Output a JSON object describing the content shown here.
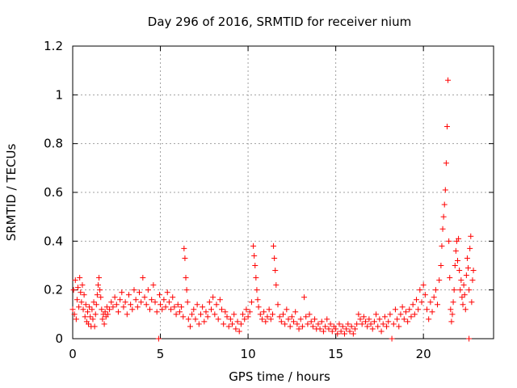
{
  "chart_data": {
    "type": "scatter",
    "title": "Day 296 of 2016, SRMTID for receiver nium",
    "xlabel": "GPS time / hours",
    "ylabel": "SRMTID / TECUs",
    "xlim": [
      0,
      24
    ],
    "ylim": [
      0,
      1.2
    ],
    "x_ticks": [
      0,
      5,
      10,
      15,
      20
    ],
    "x_tick_labels": [
      "0",
      "5",
      "10",
      "15",
      "20"
    ],
    "y_ticks": [
      0,
      0.2,
      0.4,
      0.6,
      0.8,
      1,
      1.2
    ],
    "y_tick_labels": [
      "0",
      "0.2",
      "0.4",
      "0.6",
      "0.8",
      "1",
      "1.2"
    ],
    "grid": true,
    "marker": "+",
    "color": "#ff0000",
    "series": [
      {
        "name": "SRMTID",
        "points": [
          [
            0.0,
            0.12
          ],
          [
            0.05,
            0.2
          ],
          [
            0.1,
            0.1
          ],
          [
            0.15,
            0.24
          ],
          [
            0.2,
            0.08
          ],
          [
            0.25,
            0.16
          ],
          [
            0.3,
            0.21
          ],
          [
            0.35,
            0.13
          ],
          [
            0.4,
            0.25
          ],
          [
            0.45,
            0.19
          ],
          [
            0.5,
            0.15
          ],
          [
            0.55,
            0.22
          ],
          [
            0.6,
            0.12
          ],
          [
            0.65,
            0.18
          ],
          [
            0.7,
            0.09
          ],
          [
            0.75,
            0.14
          ],
          [
            0.8,
            0.07
          ],
          [
            0.85,
            0.11
          ],
          [
            0.9,
            0.06
          ],
          [
            0.95,
            0.13
          ],
          [
            1.0,
            0.09
          ],
          [
            1.05,
            0.05
          ],
          [
            1.1,
            0.12
          ],
          [
            1.15,
            0.08
          ],
          [
            1.2,
            0.15
          ],
          [
            1.25,
            0.05
          ],
          [
            1.3,
            0.1
          ],
          [
            1.35,
            0.14
          ],
          [
            1.4,
            0.18
          ],
          [
            1.45,
            0.22
          ],
          [
            1.5,
            0.25
          ],
          [
            1.55,
            0.2
          ],
          [
            1.6,
            0.17
          ],
          [
            1.65,
            0.12
          ],
          [
            1.7,
            0.08
          ],
          [
            1.75,
            0.1
          ],
          [
            1.8,
            0.06
          ],
          [
            1.85,
            0.11
          ],
          [
            1.9,
            0.09
          ],
          [
            1.95,
            0.13
          ],
          [
            2.0,
            0.1
          ],
          [
            2.1,
            0.12
          ],
          [
            2.2,
            0.15
          ],
          [
            2.3,
            0.13
          ],
          [
            2.4,
            0.17
          ],
          [
            2.5,
            0.14
          ],
          [
            2.6,
            0.11
          ],
          [
            2.7,
            0.16
          ],
          [
            2.8,
            0.19
          ],
          [
            2.9,
            0.13
          ],
          [
            3.0,
            0.15
          ],
          [
            3.1,
            0.1
          ],
          [
            3.2,
            0.18
          ],
          [
            3.3,
            0.14
          ],
          [
            3.4,
            0.12
          ],
          [
            3.5,
            0.2
          ],
          [
            3.6,
            0.16
          ],
          [
            3.7,
            0.13
          ],
          [
            3.8,
            0.19
          ],
          [
            3.9,
            0.15
          ],
          [
            4.0,
            0.25
          ],
          [
            4.1,
            0.17
          ],
          [
            4.2,
            0.14
          ],
          [
            4.3,
            0.2
          ],
          [
            4.4,
            0.12
          ],
          [
            4.5,
            0.16
          ],
          [
            4.6,
            0.22
          ],
          [
            4.7,
            0.15
          ],
          [
            4.8,
            0.11
          ],
          [
            4.9,
            0.0
          ],
          [
            4.95,
            0.18
          ],
          [
            5.0,
            0.14
          ],
          [
            5.1,
            0.12
          ],
          [
            5.2,
            0.16
          ],
          [
            5.3,
            0.13
          ],
          [
            5.4,
            0.19
          ],
          [
            5.5,
            0.15
          ],
          [
            5.6,
            0.12
          ],
          [
            5.7,
            0.17
          ],
          [
            5.8,
            0.13
          ],
          [
            5.9,
            0.1
          ],
          [
            6.0,
            0.14
          ],
          [
            6.1,
            0.11
          ],
          [
            6.2,
            0.13
          ],
          [
            6.3,
            0.09
          ],
          [
            6.35,
            0.37
          ],
          [
            6.4,
            0.33
          ],
          [
            6.45,
            0.25
          ],
          [
            6.5,
            0.2
          ],
          [
            6.55,
            0.15
          ],
          [
            6.6,
            0.08
          ],
          [
            6.7,
            0.05
          ],
          [
            6.8,
            0.1
          ],
          [
            6.9,
            0.12
          ],
          [
            7.0,
            0.08
          ],
          [
            7.1,
            0.14
          ],
          [
            7.2,
            0.06
          ],
          [
            7.3,
            0.1
          ],
          [
            7.4,
            0.13
          ],
          [
            7.5,
            0.07
          ],
          [
            7.6,
            0.11
          ],
          [
            7.7,
            0.09
          ],
          [
            7.8,
            0.15
          ],
          [
            7.9,
            0.12
          ],
          [
            8.0,
            0.17
          ],
          [
            8.1,
            0.1
          ],
          [
            8.2,
            0.14
          ],
          [
            8.3,
            0.08
          ],
          [
            8.4,
            0.16
          ],
          [
            8.5,
            0.12
          ],
          [
            8.6,
            0.06
          ],
          [
            8.7,
            0.11
          ],
          [
            8.8,
            0.09
          ],
          [
            8.9,
            0.05
          ],
          [
            9.0,
            0.08
          ],
          [
            9.1,
            0.06
          ],
          [
            9.2,
            0.1
          ],
          [
            9.3,
            0.04
          ],
          [
            9.4,
            0.07
          ],
          [
            9.5,
            0.03
          ],
          [
            9.6,
            0.06
          ],
          [
            9.7,
            0.1
          ],
          [
            9.8,
            0.08
          ],
          [
            9.9,
            0.12
          ],
          [
            10.0,
            0.09
          ],
          [
            10.1,
            0.11
          ],
          [
            10.2,
            0.15
          ],
          [
            10.3,
            0.38
          ],
          [
            10.35,
            0.34
          ],
          [
            10.4,
            0.3
          ],
          [
            10.45,
            0.25
          ],
          [
            10.5,
            0.2
          ],
          [
            10.55,
            0.16
          ],
          [
            10.6,
            0.13
          ],
          [
            10.7,
            0.1
          ],
          [
            10.8,
            0.08
          ],
          [
            10.9,
            0.11
          ],
          [
            11.0,
            0.07
          ],
          [
            11.1,
            0.09
          ],
          [
            11.2,
            0.12
          ],
          [
            11.3,
            0.08
          ],
          [
            11.4,
            0.1
          ],
          [
            11.45,
            0.38
          ],
          [
            11.5,
            0.33
          ],
          [
            11.55,
            0.28
          ],
          [
            11.6,
            0.22
          ],
          [
            11.7,
            0.14
          ],
          [
            11.8,
            0.09
          ],
          [
            11.9,
            0.07
          ],
          [
            12.0,
            0.1
          ],
          [
            12.1,
            0.06
          ],
          [
            12.2,
            0.12
          ],
          [
            12.3,
            0.08
          ],
          [
            12.4,
            0.05
          ],
          [
            12.5,
            0.09
          ],
          [
            12.6,
            0.07
          ],
          [
            12.7,
            0.11
          ],
          [
            12.8,
            0.06
          ],
          [
            12.9,
            0.04
          ],
          [
            13.0,
            0.08
          ],
          [
            13.1,
            0.05
          ],
          [
            13.2,
            0.17
          ],
          [
            13.3,
            0.09
          ],
          [
            13.4,
            0.06
          ],
          [
            13.5,
            0.1
          ],
          [
            13.6,
            0.07
          ],
          [
            13.7,
            0.05
          ],
          [
            13.8,
            0.08
          ],
          [
            13.9,
            0.04
          ],
          [
            14.0,
            0.06
          ],
          [
            14.1,
            0.04
          ],
          [
            14.2,
            0.07
          ],
          [
            14.3,
            0.03
          ],
          [
            14.4,
            0.05
          ],
          [
            14.5,
            0.08
          ],
          [
            14.6,
            0.04
          ],
          [
            14.7,
            0.06
          ],
          [
            14.8,
            0.03
          ],
          [
            14.9,
            0.05
          ],
          [
            15.0,
            0.04
          ],
          [
            15.1,
            0.02
          ],
          [
            15.2,
            0.06
          ],
          [
            15.3,
            0.03
          ],
          [
            15.4,
            0.05
          ],
          [
            15.5,
            0.02
          ],
          [
            15.6,
            0.04
          ],
          [
            15.7,
            0.06
          ],
          [
            15.8,
            0.03
          ],
          [
            15.9,
            0.05
          ],
          [
            16.0,
            0.02
          ],
          [
            16.1,
            0.04
          ],
          [
            16.2,
            0.06
          ],
          [
            16.3,
            0.1
          ],
          [
            16.4,
            0.08
          ],
          [
            16.5,
            0.06
          ],
          [
            16.6,
            0.09
          ],
          [
            16.7,
            0.07
          ],
          [
            16.8,
            0.05
          ],
          [
            16.9,
            0.08
          ],
          [
            17.0,
            0.06
          ],
          [
            17.1,
            0.04
          ],
          [
            17.2,
            0.07
          ],
          [
            17.3,
            0.1
          ],
          [
            17.4,
            0.05
          ],
          [
            17.5,
            0.08
          ],
          [
            17.6,
            0.03
          ],
          [
            17.7,
            0.06
          ],
          [
            17.8,
            0.09
          ],
          [
            17.9,
            0.05
          ],
          [
            18.0,
            0.07
          ],
          [
            18.1,
            0.1
          ],
          [
            18.2,
            0.0
          ],
          [
            18.3,
            0.06
          ],
          [
            18.4,
            0.12
          ],
          [
            18.5,
            0.08
          ],
          [
            18.6,
            0.05
          ],
          [
            18.7,
            0.1
          ],
          [
            18.8,
            0.13
          ],
          [
            18.9,
            0.08
          ],
          [
            19.0,
            0.11
          ],
          [
            19.1,
            0.07
          ],
          [
            19.2,
            0.12
          ],
          [
            19.3,
            0.09
          ],
          [
            19.4,
            0.14
          ],
          [
            19.5,
            0.1
          ],
          [
            19.6,
            0.16
          ],
          [
            19.7,
            0.12
          ],
          [
            19.8,
            0.2
          ],
          [
            19.9,
            0.15
          ],
          [
            20.0,
            0.22
          ],
          [
            20.1,
            0.18
          ],
          [
            20.2,
            0.12
          ],
          [
            20.3,
            0.08
          ],
          [
            20.4,
            0.15
          ],
          [
            20.5,
            0.11
          ],
          [
            20.6,
            0.17
          ],
          [
            20.7,
            0.2
          ],
          [
            20.8,
            0.14
          ],
          [
            20.9,
            0.24
          ],
          [
            21.0,
            0.3
          ],
          [
            21.05,
            0.38
          ],
          [
            21.1,
            0.45
          ],
          [
            21.15,
            0.5
          ],
          [
            21.2,
            0.55
          ],
          [
            21.25,
            0.61
          ],
          [
            21.3,
            0.72
          ],
          [
            21.35,
            0.87
          ],
          [
            21.4,
            1.06
          ],
          [
            21.45,
            0.4
          ],
          [
            21.5,
            0.25
          ],
          [
            21.55,
            0.12
          ],
          [
            21.6,
            0.07
          ],
          [
            21.65,
            0.1
          ],
          [
            21.7,
            0.15
          ],
          [
            21.75,
            0.2
          ],
          [
            21.8,
            0.3
          ],
          [
            21.85,
            0.36
          ],
          [
            21.9,
            0.4
          ],
          [
            21.95,
            0.32
          ],
          [
            22.0,
            0.41
          ],
          [
            22.05,
            0.28
          ],
          [
            22.1,
            0.2
          ],
          [
            22.15,
            0.24
          ],
          [
            22.2,
            0.17
          ],
          [
            22.25,
            0.14
          ],
          [
            22.3,
            0.22
          ],
          [
            22.35,
            0.18
          ],
          [
            22.4,
            0.12
          ],
          [
            22.45,
            0.26
          ],
          [
            22.5,
            0.33
          ],
          [
            22.55,
            0.29
          ],
          [
            22.6,
            0.2
          ],
          [
            22.65,
            0.37
          ],
          [
            22.7,
            0.42
          ],
          [
            22.75,
            0.15
          ],
          [
            22.8,
            0.24
          ],
          [
            22.85,
            0.28
          ],
          [
            22.6,
            0.0
          ]
        ]
      }
    ]
  }
}
